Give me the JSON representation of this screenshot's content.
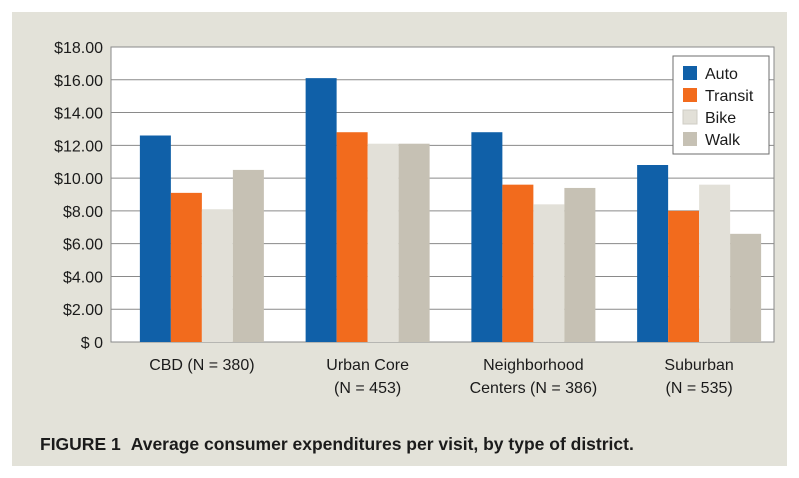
{
  "chart_data": {
    "type": "bar",
    "figure_label": "FIGURE 1",
    "title": "Average consumer expenditures per visit, by type of district.",
    "xlabel": "",
    "ylabel": "",
    "ylim": [
      0,
      18
    ],
    "y_ticks": [
      "$18.00",
      "$16.00",
      "$14.00",
      "$12.00",
      "$10.00",
      "$8.00",
      "$6.00",
      "$4.00",
      "$2.00",
      "$ 0"
    ],
    "y_tick_values": [
      18,
      16,
      14,
      12,
      10,
      8,
      6,
      4,
      2,
      0
    ],
    "categories": [
      {
        "line1": "CBD (N = 380)",
        "line2": ""
      },
      {
        "line1": "Urban Core",
        "line2": "(N = 453)"
      },
      {
        "line1": "Neighborhood",
        "line2": "Centers (N = 386)"
      },
      {
        "line1": "Suburban",
        "line2": "(N = 535)"
      }
    ],
    "series": [
      {
        "name": "Auto",
        "color": "#1060a8",
        "values": [
          12.6,
          16.1,
          12.8,
          10.8
        ]
      },
      {
        "name": "Transit",
        "color": "#f26b1d",
        "values": [
          9.1,
          12.8,
          9.6,
          8.0
        ]
      },
      {
        "name": "Bike",
        "color": "#e2e0d8",
        "values": [
          8.1,
          12.1,
          8.4,
          9.6
        ]
      },
      {
        "name": "Walk",
        "color": "#c6c1b4",
        "values": [
          10.5,
          12.1,
          9.4,
          6.6
        ]
      }
    ],
    "grid": true,
    "legend_position": "top-right"
  }
}
